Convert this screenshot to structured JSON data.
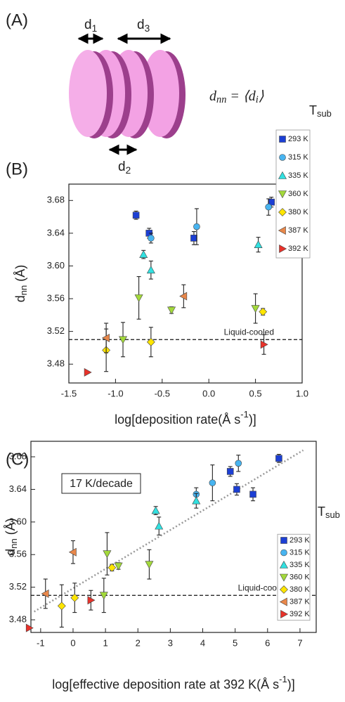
{
  "diagram": {
    "label": "(A)",
    "spacings": [
      [
        {
          "text": "d"
        },
        {
          "sub": "1"
        }
      ],
      [
        {
          "text": "d"
        },
        {
          "sub": "3"
        }
      ],
      [
        {
          "text": "d"
        },
        {
          "sub": "2"
        }
      ]
    ],
    "equation": [
      {
        "text": "d"
      },
      {
        "sub": "nn"
      },
      {
        "text": " = ⟨d"
      },
      {
        "sub": "i"
      },
      {
        "text": "⟩"
      }
    ]
  },
  "chart_data": [
    {
      "type": "scatter",
      "panel_label": "(B)",
      "xlabel": [
        {
          "text": "log[deposition rate(Å s"
        },
        {
          "sup": "-1"
        },
        {
          "text": ")]"
        }
      ],
      "ylabel": [
        {
          "text": "d"
        },
        {
          "sub": "nn"
        },
        {
          "text": " (Å)"
        }
      ],
      "xlim": [
        -1.5,
        1.0
      ],
      "xticks": [
        -1.5,
        {
          "value": -1,
          "label": "-1.0"
        },
        -0.5,
        {
          "value": 0,
          "label": "0.0"
        },
        0.5,
        {
          "value": 1,
          "label": "1.0"
        }
      ],
      "ylim": [
        3.457,
        3.7
      ],
      "yticks": [
        3.48,
        3.52,
        3.56,
        {
          "value": 3.6,
          "label": "3.60"
        },
        3.64,
        3.68
      ],
      "reference": {
        "y": 3.51,
        "label": "Liquid-cooled"
      },
      "legend_title": [
        {
          "text": "T"
        },
        {
          "sub": "sub"
        }
      ],
      "series": [
        {
          "name": "293 K",
          "color": "#1c3fd4",
          "marker": "square",
          "x": [
            -0.78,
            -0.64,
            -0.16,
            0.67
          ],
          "values": [
            3.662,
            3.64,
            3.634,
            3.678
          ],
          "errors": [
            0.005,
            0.006,
            0.008,
            0.006
          ]
        },
        {
          "name": "315 K",
          "color": "#48b4f0",
          "marker": "circle",
          "x": [
            -0.62,
            -0.13,
            0.64
          ],
          "values": [
            3.634,
            3.648,
            3.672
          ],
          "errors": [
            0.006,
            0.022,
            0.01
          ]
        },
        {
          "name": "335 K",
          "color": "#31e0e0",
          "marker": "triangle-up",
          "x": [
            -0.7,
            -0.62,
            0.53
          ],
          "values": [
            3.614,
            3.595,
            3.626
          ],
          "errors": [
            0.005,
            0.011,
            0.009
          ]
        },
        {
          "name": "360 K",
          "color": "#a3d93b",
          "marker": "triangle-down",
          "x": [
            -0.75,
            -0.92,
            -0.4,
            0.5
          ],
          "values": [
            3.561,
            3.51,
            3.546,
            3.548
          ],
          "errors": [
            0.026,
            0.021,
            0.004,
            0.018
          ]
        },
        {
          "name": "380 K",
          "color": "#ffe500",
          "marker": "diamond",
          "x": [
            -1.1,
            -0.62,
            0.58
          ],
          "values": [
            3.497,
            3.507,
            3.544
          ],
          "errors": [
            0.026,
            0.018,
            0.004
          ]
        },
        {
          "name": "387 K",
          "color": "#e8874a",
          "marker": "triangle-left",
          "x": [
            -1.1,
            -0.27
          ],
          "values": [
            3.512,
            3.563
          ],
          "errors": [
            0.018,
            0.014
          ]
        },
        {
          "name": "392 K",
          "color": "#e8322a",
          "marker": "triangle-right",
          "x": [
            -1.3,
            0.59
          ],
          "values": [
            3.47,
            3.504
          ],
          "errors": [
            null,
            0.012
          ]
        }
      ]
    },
    {
      "type": "scatter",
      "panel_label": "(C)",
      "xlabel": [
        {
          "text": "log[effective deposition rate at 392 K(Å s"
        },
        {
          "sup": "-1"
        },
        {
          "text": ")]"
        }
      ],
      "ylabel": [
        {
          "text": "d"
        },
        {
          "sub": "nn"
        },
        {
          "text": " (Å)"
        }
      ],
      "xlim": [
        -1.3,
        7.5
      ],
      "xticks": [
        -1,
        0,
        1,
        2,
        3,
        4,
        5,
        6,
        7
      ],
      "ylim": [
        3.4645,
        3.699
      ],
      "yticks": [
        3.48,
        3.52,
        3.56,
        {
          "value": 3.6,
          "label": "3.60"
        },
        3.64,
        3.68
      ],
      "reference": {
        "y": 3.51,
        "label": "Liquid-cooled"
      },
      "annotation": "17 K/decade",
      "fit": {
        "x": [
          -1.2,
          7.1
        ],
        "y": [
          3.49,
          3.688
        ]
      },
      "legend_title": [
        {
          "text": "T"
        },
        {
          "sub": "sub"
        }
      ],
      "series": [
        {
          "name": "293 K",
          "color": "#1c3fd4",
          "marker": "square",
          "x": [
            4.85,
            5.05,
            5.55,
            6.35
          ],
          "values": [
            3.662,
            3.64,
            3.634,
            3.678
          ],
          "errors": [
            0.006,
            0.007,
            0.008,
            0.005
          ]
        },
        {
          "name": "315 K",
          "color": "#48b4f0",
          "marker": "circle",
          "x": [
            3.8,
            4.3,
            5.1
          ],
          "values": [
            3.634,
            3.648,
            3.672
          ],
          "errors": [
            0.008,
            0.022,
            0.01
          ]
        },
        {
          "name": "335 K",
          "color": "#31e0e0",
          "marker": "triangle-up",
          "x": [
            2.55,
            2.65,
            3.8
          ],
          "values": [
            3.614,
            3.595,
            3.626
          ],
          "errors": [
            0.005,
            0.011,
            0.009
          ]
        },
        {
          "name": "360 K",
          "color": "#a3d93b",
          "marker": "triangle-down",
          "x": [
            1.05,
            0.95,
            1.4,
            2.35
          ],
          "values": [
            3.561,
            3.51,
            3.546,
            3.548
          ],
          "errors": [
            0.026,
            0.021,
            0.004,
            0.018
          ]
        },
        {
          "name": "380 K",
          "color": "#ffe500",
          "marker": "diamond",
          "x": [
            -0.35,
            0.05,
            1.2
          ],
          "values": [
            3.497,
            3.507,
            3.544
          ],
          "errors": [
            0.026,
            0.018,
            0.004
          ]
        },
        {
          "name": "387 K",
          "color": "#e8874a",
          "marker": "triangle-left",
          "x": [
            -0.85,
            0.0
          ],
          "values": [
            3.512,
            3.563
          ],
          "errors": [
            0.018,
            0.014
          ]
        },
        {
          "name": "392 K",
          "color": "#e8322a",
          "marker": "triangle-right",
          "x": [
            -1.35,
            0.55
          ],
          "values": [
            3.47,
            3.504
          ],
          "errors": [
            null,
            0.012
          ]
        }
      ]
    }
  ]
}
